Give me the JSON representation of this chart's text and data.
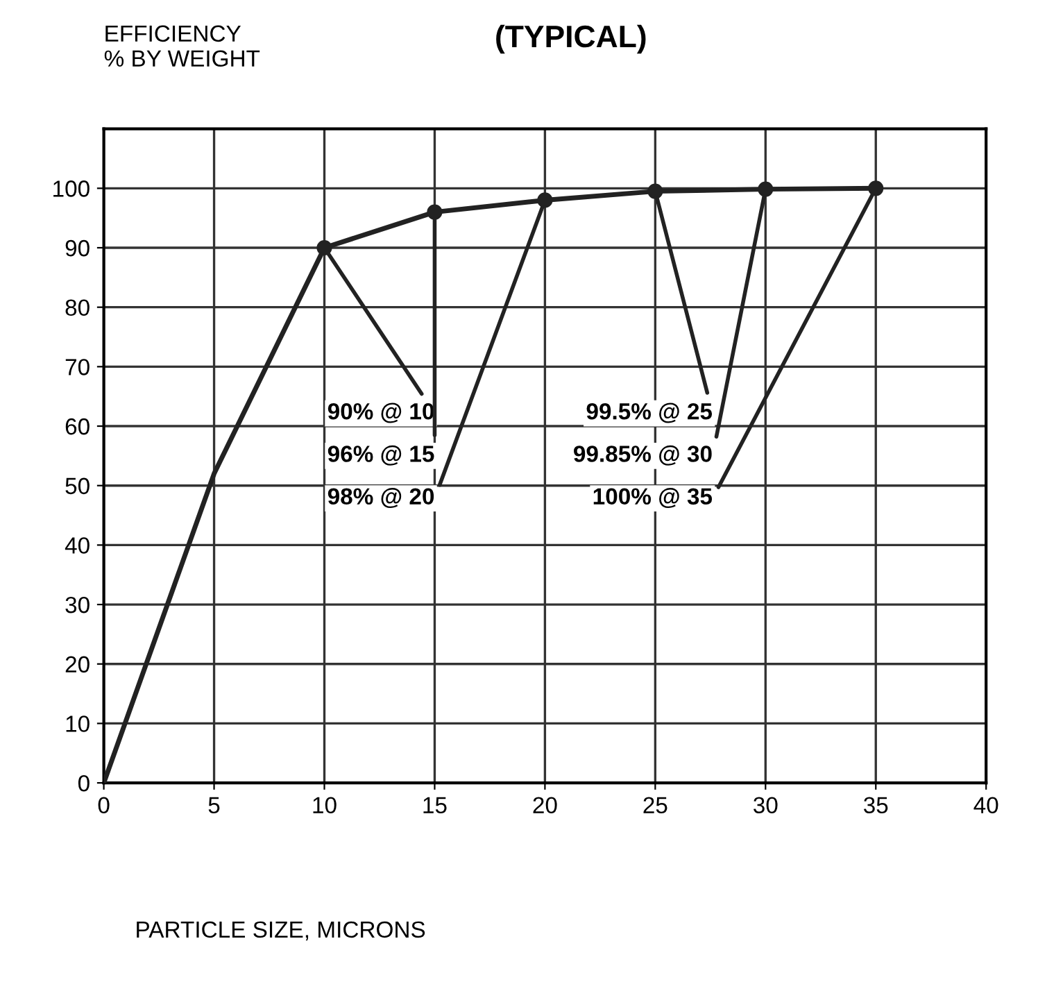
{
  "chart_data": {
    "type": "line",
    "title": "(TYPICAL)",
    "ylabel": "EFFICIENCY\n% BY WEIGHT",
    "xlabel": "PARTICLE SIZE, MICRONS",
    "series": [
      {
        "color": "#222222",
        "x": [
          0,
          5,
          10,
          15,
          20,
          25,
          30,
          35
        ],
        "values": [
          0,
          52,
          90,
          96,
          98,
          99.5,
          99.85,
          100
        ]
      },
      {
        "type": "scatter",
        "color": "#222222",
        "marker": "circle",
        "x": [
          10,
          15,
          20,
          25,
          30,
          35
        ],
        "values": [
          90,
          96,
          98,
          99.5,
          99.85,
          100
        ]
      }
    ],
    "annotations": [
      {
        "text": "90% @ 10",
        "x": 10,
        "y": 90
      },
      {
        "text": "96% @ 15",
        "x": 15,
        "y": 96
      },
      {
        "text": "98% @ 20",
        "x": 20,
        "y": 98
      },
      {
        "text": "99.5% @ 25",
        "x": 25,
        "y": 99.5
      },
      {
        "text": "99.85% @ 30",
        "x": 30,
        "y": 99.85
      },
      {
        "text": "100% @ 35",
        "x": 35,
        "y": 100
      }
    ],
    "xlim": [
      0,
      40
    ],
    "ylim": [
      0,
      110
    ],
    "xticks": [
      0,
      5,
      10,
      15,
      20,
      25,
      30,
      35,
      40
    ],
    "yticks": [
      0,
      10,
      20,
      30,
      40,
      50,
      60,
      70,
      80,
      90,
      100
    ],
    "grid": true,
    "legend": false,
    "line_style": "solid"
  }
}
